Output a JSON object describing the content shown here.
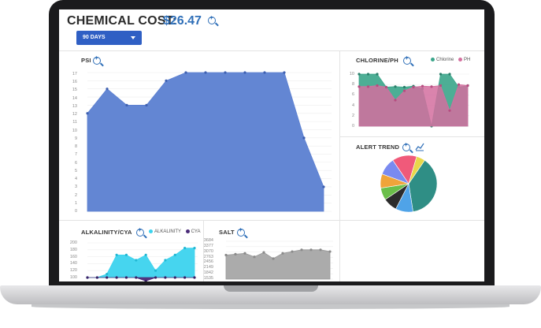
{
  "header": {
    "cost_label": "CHEMICAL COST:",
    "cost_value": "$26.47"
  },
  "range_dropdown": {
    "selected": "90 DAYS"
  },
  "colors": {
    "psi": "#5b7fd1",
    "chlorine": "#3aa58a",
    "ph": "#d46f9f",
    "alkalinity": "#3cd3ee",
    "cya": "#4a2b78",
    "salt": "#a7a7a7",
    "accent": "#2f6fb8"
  },
  "panels": {
    "psi": {
      "title": "PSI",
      "ticks": [
        "17",
        "16",
        "15",
        "14",
        "13",
        "12",
        "11",
        "10",
        "9",
        "8",
        "7",
        "6",
        "5",
        "4",
        "3",
        "2",
        "1",
        "0"
      ]
    },
    "chlorine_ph": {
      "title": "CHLORINE/PH",
      "legend": [
        "Chlorine",
        "PH"
      ],
      "ticks": [
        "10",
        "8",
        "6",
        "4",
        "2",
        "0"
      ]
    },
    "alert_trend": {
      "title": "ALERT TREND"
    },
    "alkalinity_cya": {
      "title": "ALKALINITY/CYA",
      "legend": [
        "ALKALINITY",
        "CYA"
      ],
      "ticks": [
        "200",
        "180",
        "160",
        "140",
        "120",
        "100"
      ]
    },
    "salt": {
      "title": "SALT",
      "ticks": [
        "3684",
        "3377",
        "3070",
        "2763",
        "2456",
        "2149",
        "1842",
        "1535"
      ]
    }
  },
  "chart_data": [
    {
      "type": "area",
      "title": "PSI",
      "series": [
        {
          "values": [
            12,
            15,
            13,
            13,
            16,
            17,
            17,
            17,
            17,
            17,
            17,
            9,
            3
          ]
        }
      ],
      "ylim": [
        0,
        17
      ]
    },
    {
      "type": "area",
      "title": "CHLORINE/PH",
      "series": [
        {
          "name": "Chlorine",
          "values": [
            10,
            10,
            10,
            7.5,
            7.6,
            7.5,
            7.7,
            7.2,
            0,
            10,
            10,
            7.5,
            7.8
          ]
        },
        {
          "name": "PH",
          "values": [
            7.6,
            7.6,
            7.8,
            7.5,
            5,
            6.8,
            7.5,
            7.7,
            7.6,
            7.8,
            3,
            8,
            7.8
          ]
        }
      ],
      "ylim": [
        0,
        10
      ]
    },
    {
      "type": "pie",
      "title": "ALERT TREND",
      "values": [
        38,
        10,
        8,
        7,
        8,
        10,
        14,
        5
      ],
      "colors": [
        "#2f8e85",
        "#4fa3e8",
        "#2c2c2c",
        "#6bbf4a",
        "#f0a43a",
        "#7a8af0",
        "#f05a7a",
        "#e8d84a"
      ]
    },
    {
      "type": "area",
      "title": "ALKALINITY/CYA",
      "series": [
        {
          "name": "ALKALINITY",
          "values": [
            100,
            100,
            110,
            165,
            165,
            150,
            165,
            120,
            150,
            165,
            185,
            185
          ]
        },
        {
          "name": "CYA",
          "values": [
            100,
            100,
            100,
            100,
            100,
            100,
            90,
            100,
            100,
            100,
            100,
            100
          ]
        }
      ],
      "ylim": [
        100,
        200
      ]
    },
    {
      "type": "area",
      "title": "SALT",
      "series": [
        {
          "values": [
            2900,
            2950,
            3000,
            2800,
            3050,
            2700,
            3000,
            3100,
            3200,
            3200,
            3200,
            3100
          ]
        }
      ],
      "ylim": [
        1535,
        3684
      ]
    }
  ]
}
